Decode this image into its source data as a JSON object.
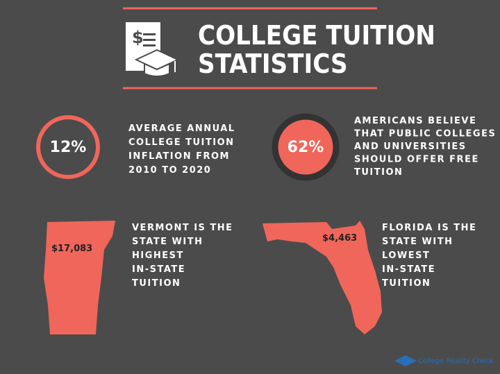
{
  "header": {
    "title_lines": [
      "COLLEGE TUITION",
      "STATISTICS"
    ]
  },
  "stats": [
    {
      "value": "12%",
      "lines": [
        "AVERAGE ANNUAL",
        "COLLEGE TUITION",
        "INFLATION FROM",
        "2010 TO 2020"
      ]
    },
    {
      "value": "62%",
      "lines": [
        "AMERICANS BELIEVE",
        "THAT PUBLIC COLLEGES",
        "AND UNIVERSITIES",
        "SHOULD OFFER FREE",
        "TUITION"
      ]
    }
  ],
  "states": [
    {
      "amount": "$17,083",
      "lines": [
        "VERMONT IS THE",
        "STATE WITH",
        "HIGHEST",
        "IN-STATE",
        "TUITION"
      ]
    },
    {
      "amount": "$4,463",
      "lines": [
        "FLORIDA IS THE",
        "STATE WITH",
        "LOWEST",
        "IN-STATE",
        "TUITION"
      ]
    }
  ],
  "watermark": "College Reality Check"
}
